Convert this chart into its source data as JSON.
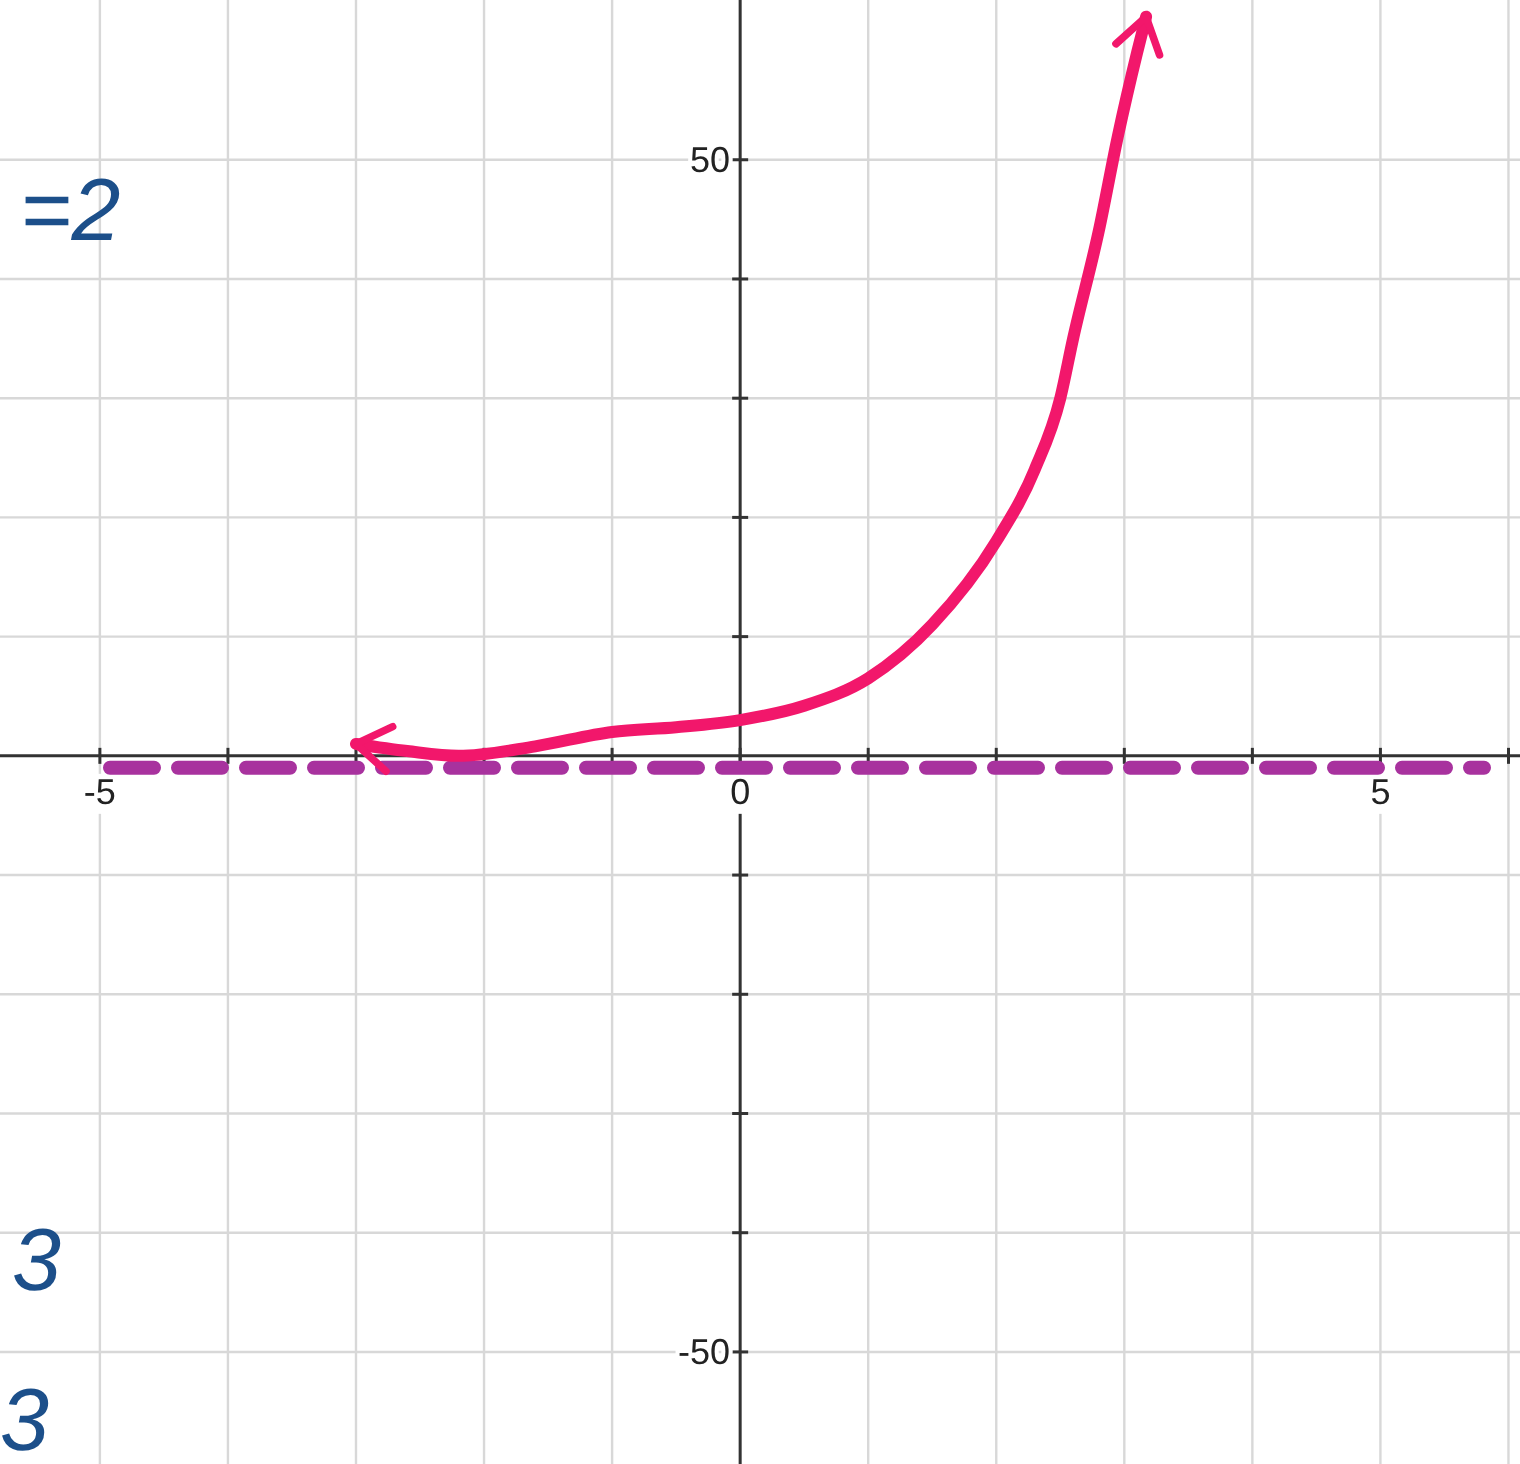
{
  "chart_data": {
    "type": "line",
    "x": [
      -3,
      -2.6,
      -2.2,
      -1.6,
      -1,
      -0.5,
      0,
      0.5,
      1,
      1.5,
      2,
      2.3,
      2.5,
      2.6,
      2.8,
      2.95,
      3.1,
      3.17
    ],
    "series": [
      {
        "color": "#f2176b",
        "values": [
          1,
          0.4,
          0,
          0.8,
          2,
          2.4,
          3,
          4.2,
          6.5,
          11,
          18,
          24,
          30,
          35,
          44,
          52,
          59,
          62
        ]
      }
    ],
    "xlim": [
      -5.78,
      6.09
    ],
    "ylim": [
      -59.4,
      63.4
    ],
    "xticks": [
      {
        "value": -5,
        "label": "-5"
      },
      {
        "value": -4,
        "label": null
      },
      {
        "value": -3,
        "label": null
      },
      {
        "value": -2,
        "label": null
      },
      {
        "value": -1,
        "label": null
      },
      {
        "value": 0,
        "label": "0"
      },
      {
        "value": 1,
        "label": null
      },
      {
        "value": 2,
        "label": null
      },
      {
        "value": 3,
        "label": null
      },
      {
        "value": 4,
        "label": null
      },
      {
        "value": 5,
        "label": "5"
      },
      {
        "value": 6,
        "label": null
      }
    ],
    "yticks": [
      {
        "value": -50,
        "label": "-50"
      },
      {
        "value": -40,
        "label": null
      },
      {
        "value": -30,
        "label": null
      },
      {
        "value": -20,
        "label": null
      },
      {
        "value": -10,
        "label": null
      },
      {
        "value": 10,
        "label": null
      },
      {
        "value": 20,
        "label": null
      },
      {
        "value": 30,
        "label": null
      },
      {
        "value": 40,
        "label": null
      },
      {
        "value": 50,
        "label": "50"
      }
    ],
    "grid": true,
    "ref_lines": [
      {
        "axis": "y",
        "value": -1,
        "color": "#a8329e",
        "line_style": "dashed"
      }
    ],
    "annotations": [
      "=2",
      "3",
      "3"
    ]
  }
}
